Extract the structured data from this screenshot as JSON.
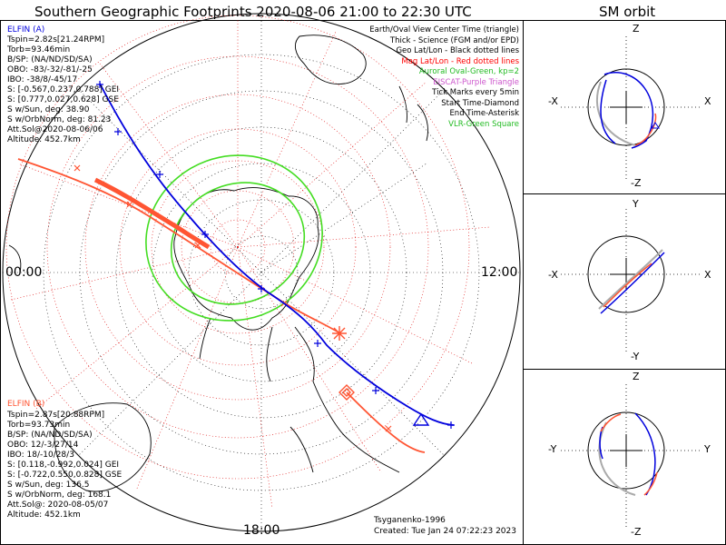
{
  "main_title": "Southern Geographic Footprints 2020-08-06 21:00 to 22:30 UTC",
  "orbit_title": "SM orbit",
  "elfin_a": {
    "name": "ELFIN (A)",
    "lines": [
      "Tspin=2.82s[21.24RPM]",
      "Torb=93.46min",
      "B/SP: (NA/ND/SD/SA)",
      "OBO: -83/-32/-81/-25",
      "IBO: -38/8/-45/17",
      "S: [-0.567,0.237,0.788] GEI",
      "S: [0.777,0.027,0.628] GSE",
      "S w/Sun, deg: 38.90",
      "S w/OrbNorm, deg: 81.23",
      "Att.Sol@2020-08-06/06",
      "Altitude: 452.7km"
    ]
  },
  "elfin_b": {
    "name": "ELFIN (B)",
    "lines": [
      "Tspin=2.87s[20.88RPM]",
      "Torb=93.73min",
      "B/SP: (NA/ND/SD/SA)",
      "OBO: 12/-3/27/14",
      "IBO: 18/-10/28/3",
      "S: [0.118,-0.992,0.024] GEI",
      "S: [-0.722,0.550,0.828] GSE",
      "S w/Sun, deg: 136.5",
      "S w/OrbNorm, deg: 168.1",
      "Att.Sol@: 2020-08-05/07",
      "Altitude: 452.1km"
    ]
  },
  "legend": {
    "items": [
      {
        "text": "Earth/Oval View Center Time (triangle)",
        "color": "#000000"
      },
      {
        "text": "Thick - Science (FGM and/or EPD)",
        "color": "#000000"
      },
      {
        "text": "Geo Lat/Lon - Black dotted lines",
        "color": "#000000"
      },
      {
        "text": "Mag Lat/Lon - Red dotted lines",
        "color": "#ff0000"
      },
      {
        "text": "Auroral Oval-Green, kp=2",
        "color": "#22bb22"
      },
      {
        "text": "EISCAT-Purple Triangle",
        "color": "#cc55cc"
      },
      {
        "text": "Tick Marks every 5min",
        "color": "#000000"
      },
      {
        "text": "Start Time-Diamond",
        "color": "#000000"
      },
      {
        "text": "End Time-Asterisk",
        "color": "#000000"
      },
      {
        "text": "VLR-Green Square",
        "color": "#22bb22"
      }
    ]
  },
  "hours": {
    "left": "00:00",
    "right": "12:00",
    "bottom": "18:00"
  },
  "model": "Tsyganenko-1996",
  "created": "Created: Tue Jan 24 07:22:23 2023",
  "orbit_panels": [
    {
      "top": "Z",
      "bottom": "-Z",
      "left": "-X",
      "right": "X"
    },
    {
      "top": "Y",
      "bottom": "-Y",
      "left": "-X",
      "right": "X"
    },
    {
      "top": "Z",
      "bottom": "-Z",
      "left": "-Y",
      "right": "Y"
    }
  ],
  "colors": {
    "elfin_a": "#0000dd",
    "elfin_b": "#ff5533",
    "aurora": "#44dd22",
    "mag_grid": "#dd0000"
  }
}
